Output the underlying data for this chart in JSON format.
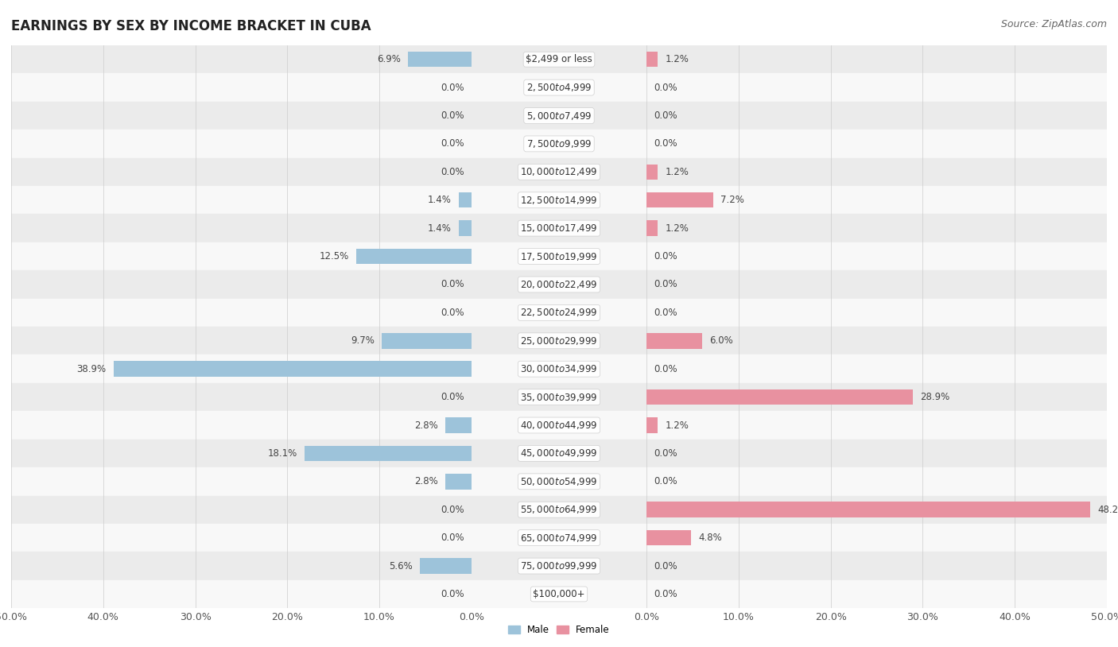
{
  "title": "EARNINGS BY SEX BY INCOME BRACKET IN CUBA",
  "source": "Source: ZipAtlas.com",
  "categories": [
    "$2,499 or less",
    "$2,500 to $4,999",
    "$5,000 to $7,499",
    "$7,500 to $9,999",
    "$10,000 to $12,499",
    "$12,500 to $14,999",
    "$15,000 to $17,499",
    "$17,500 to $19,999",
    "$20,000 to $22,499",
    "$22,500 to $24,999",
    "$25,000 to $29,999",
    "$30,000 to $34,999",
    "$35,000 to $39,999",
    "$40,000 to $44,999",
    "$45,000 to $49,999",
    "$50,000 to $54,999",
    "$55,000 to $64,999",
    "$65,000 to $74,999",
    "$75,000 to $99,999",
    "$100,000+"
  ],
  "male": [
    6.9,
    0.0,
    0.0,
    0.0,
    0.0,
    1.4,
    1.4,
    12.5,
    0.0,
    0.0,
    9.7,
    38.9,
    0.0,
    2.8,
    18.1,
    2.8,
    0.0,
    0.0,
    5.6,
    0.0
  ],
  "female": [
    1.2,
    0.0,
    0.0,
    0.0,
    1.2,
    7.2,
    1.2,
    0.0,
    0.0,
    0.0,
    6.0,
    0.0,
    28.9,
    1.2,
    0.0,
    0.0,
    48.2,
    4.8,
    0.0,
    0.0
  ],
  "male_color": "#9dc3da",
  "female_color": "#e891a0",
  "background_row_even": "#ebebeb",
  "background_row_odd": "#f8f8f8",
  "axis_limit": 50.0,
  "title_fontsize": 12,
  "source_fontsize": 9,
  "label_fontsize": 8.5,
  "category_fontsize": 8.5,
  "tick_fontsize": 9,
  "bar_height": 0.55
}
